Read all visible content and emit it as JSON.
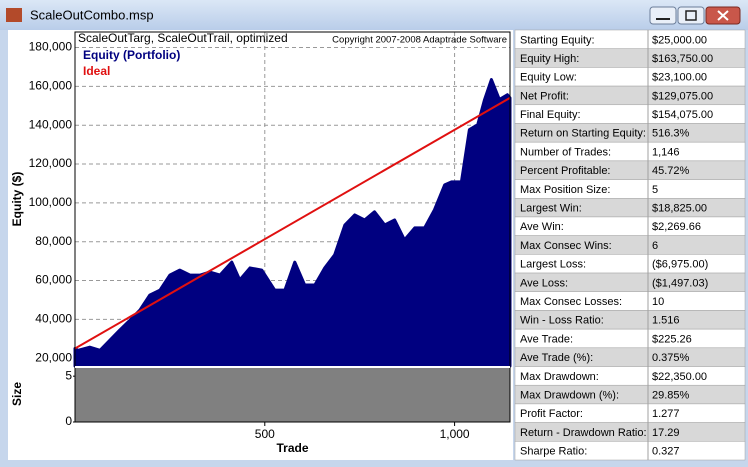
{
  "window": {
    "title": "ScaleOutCombo.msp"
  },
  "chart_data": [
    {
      "type": "area",
      "title": "ScaleOutTarg, ScaleOutTrail, optimized",
      "annotation": "Copyright 2007-2008 Adaptrade Software",
      "ylabel": "Equity ($)",
      "ylim": [
        16000,
        188000
      ],
      "yticks": [
        {
          "value": 20000,
          "label": "20,000"
        },
        {
          "value": 40000,
          "label": "40,000"
        },
        {
          "value": 60000,
          "label": "60,000"
        },
        {
          "value": 80000,
          "label": "80,000"
        },
        {
          "value": 100000,
          "label": "100,000"
        },
        {
          "value": 120000,
          "label": "120,000"
        },
        {
          "value": 140000,
          "label": "140,000"
        },
        {
          "value": 160000,
          "label": "160,000"
        },
        {
          "value": 180000,
          "label": "180,000"
        }
      ],
      "grid": true,
      "legend": "upper left",
      "series": [
        {
          "name": "Equity (Portfolio)",
          "color": "#000080",
          "kind": "area",
          "x": [
            0,
            8,
            39,
            66,
            92,
            118,
            145,
            171,
            197,
            224,
            250,
            276,
            303,
            329,
            355,
            382,
            413,
            434,
            461,
            492,
            526,
            553,
            579,
            605,
            632,
            658,
            684,
            711,
            737,
            763,
            789,
            816,
            842,
            868,
            895,
            921,
            947,
            974,
            992,
            1018,
            1039,
            1061,
            1079,
            1097,
            1118,
            1139,
            1146
          ],
          "values": [
            25000,
            24100,
            25700,
            24100,
            29300,
            34500,
            39600,
            44800,
            52500,
            55100,
            62800,
            65400,
            62800,
            62800,
            64400,
            62800,
            69500,
            60300,
            66500,
            65400,
            55100,
            55100,
            69500,
            57700,
            57700,
            66500,
            73200,
            88600,
            93800,
            91200,
            95400,
            88600,
            91200,
            80900,
            87100,
            87100,
            96400,
            109300,
            110800,
            110800,
            137700,
            140300,
            153200,
            163500,
            153200,
            155700,
            154075
          ]
        },
        {
          "name": "Ideal",
          "color": "#e01010",
          "kind": "line",
          "x": [
            0,
            1146
          ],
          "values": [
            25000,
            154075
          ]
        }
      ]
    },
    {
      "type": "area",
      "ylabel": "Size",
      "xlabel": "Trade",
      "color": "#808080",
      "xlim": [
        0,
        1146
      ],
      "xticks": [
        500,
        {
          "value": 1000,
          "label": "1,000"
        }
      ],
      "ylim": [
        0,
        6
      ],
      "yticks": [
        0,
        5
      ]
    }
  ],
  "stats": {
    "rows": [
      [
        "Starting Equity:",
        "$25,000.00"
      ],
      [
        "Equity High:",
        "$163,750.00"
      ],
      [
        "Equity Low:",
        "$23,100.00"
      ],
      [
        "Net Profit:",
        "$129,075.00"
      ],
      [
        "Final Equity:",
        "$154,075.00"
      ],
      [
        "Return on Starting Equity:",
        "516.3%"
      ],
      [
        "Number of Trades:",
        "1,146"
      ],
      [
        "Percent Profitable:",
        "45.72%"
      ],
      [
        "Max Position Size:",
        "5"
      ],
      [
        "Largest Win:",
        "$18,825.00"
      ],
      [
        "Ave Win:",
        "$2,269.66"
      ],
      [
        "Max Consec Wins:",
        "6"
      ],
      [
        "Largest Loss:",
        "($6,975.00)"
      ],
      [
        "Ave Loss:",
        "($1,497.03)"
      ],
      [
        "Max Consec Losses:",
        "10"
      ],
      [
        "Win - Loss Ratio:",
        "1.516"
      ],
      [
        "Ave Trade:",
        "$225.26"
      ],
      [
        "Ave Trade (%):",
        "0.375%"
      ],
      [
        "Max Drawdown:",
        "$22,350.00"
      ],
      [
        "Max Drawdown (%):",
        "29.85%"
      ],
      [
        "Profit Factor:",
        "1.277"
      ],
      [
        "Return - Drawdown Ratio:",
        "17.29"
      ],
      [
        "Sharpe Ratio:",
        "0.327"
      ]
    ]
  }
}
